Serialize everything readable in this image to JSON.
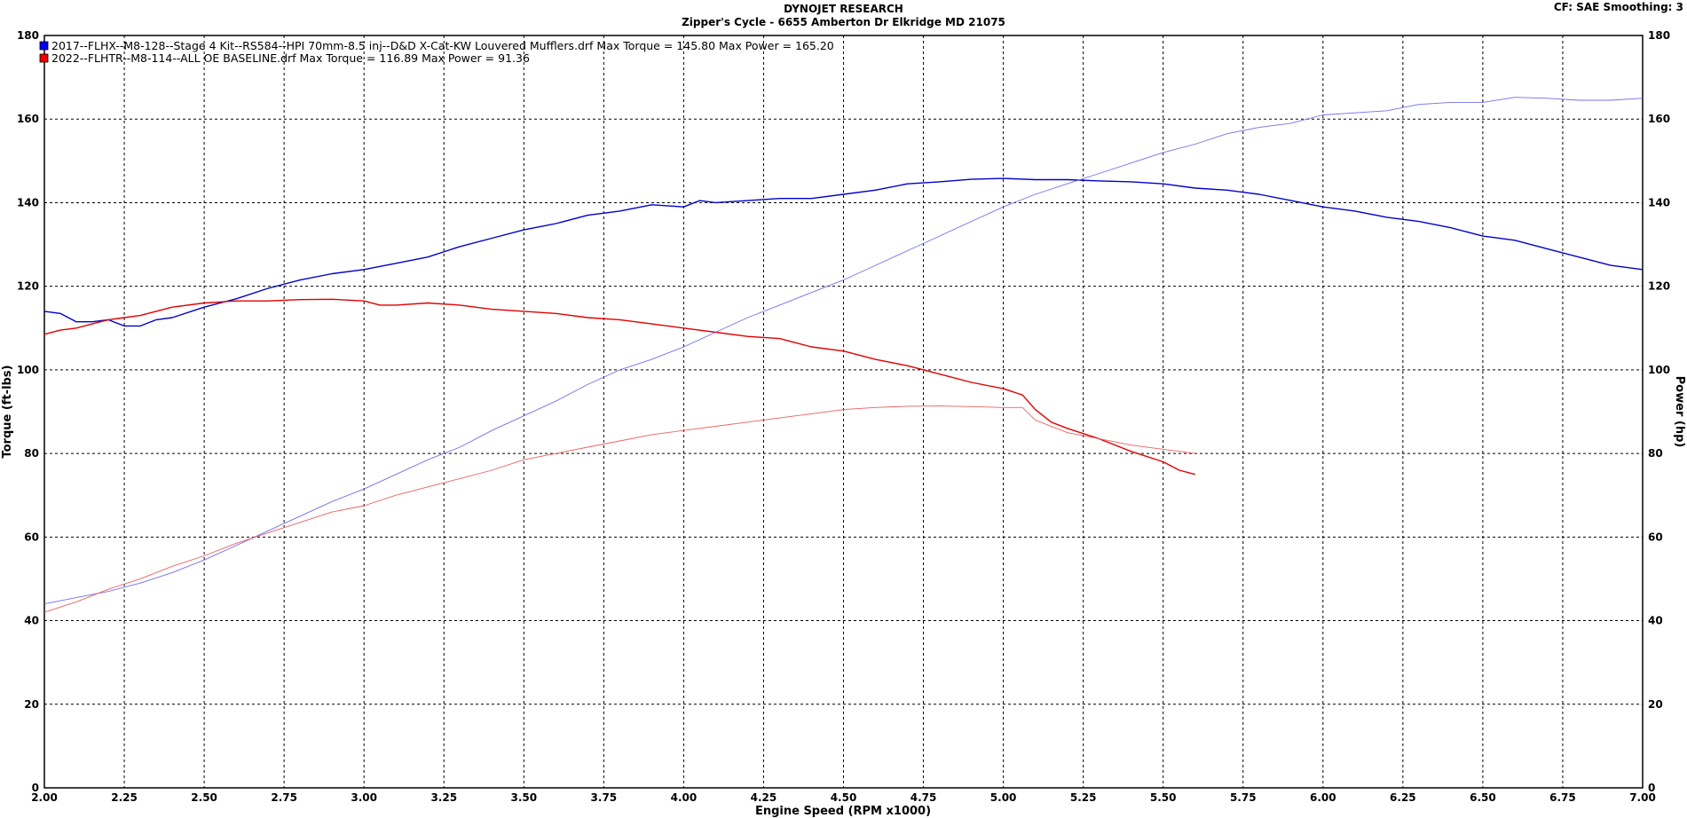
{
  "header": {
    "title": "DYNOJET RESEARCH",
    "subtitle": "Zipper's Cycle - 6655 Amberton Dr Elkridge MD 21075",
    "cf_info": "CF: SAE  Smoothing: 3"
  },
  "chart_data": {
    "type": "line",
    "xlabel": "Engine Speed (RPM x1000)",
    "ylabel_left": "Torque (ft-lbs)",
    "ylabel_right": "Power (hp)",
    "xlim": [
      2.0,
      7.0
    ],
    "ylim": [
      0,
      180
    ],
    "x_ticks": [
      "2.00",
      "2.25",
      "2.50",
      "2.75",
      "3.00",
      "3.25",
      "3.50",
      "3.75",
      "4.00",
      "4.25",
      "4.50",
      "4.75",
      "5.00",
      "5.25",
      "5.50",
      "5.75",
      "6.00",
      "6.25",
      "6.50",
      "6.75",
      "7.00"
    ],
    "y_ticks": [
      "0",
      "20",
      "40",
      "60",
      "80",
      "100",
      "120",
      "140",
      "160",
      "180"
    ],
    "grid": true,
    "legend": [
      {
        "text": "2017--FLHX--M8-128--Stage 4 Kit--RS584--HPI 70mm-8.5 inj--D&D X-Cat-KW Louvered Mufflers.drf Max Torque = 145.80     Max Power = 165.20",
        "color": "#0000ee"
      },
      {
        "text": "2022--FLHTR--M8-114--ALL OE BASELINE.drf Max Torque = 116.89     Max Power = 91.36",
        "color": "#ee0000"
      }
    ],
    "series": [
      {
        "color": "#0000cc",
        "width": 1.4,
        "x": [
          2.0,
          2.05,
          2.1,
          2.15,
          2.2,
          2.25,
          2.3,
          2.35,
          2.4,
          2.5,
          2.6,
          2.7,
          2.8,
          2.9,
          3.0,
          3.1,
          3.2,
          3.3,
          3.4,
          3.5,
          3.6,
          3.7,
          3.8,
          3.9,
          4.0,
          4.05,
          4.1,
          4.2,
          4.3,
          4.4,
          4.5,
          4.6,
          4.7,
          4.8,
          4.9,
          5.0,
          5.1,
          5.2,
          5.3,
          5.4,
          5.5,
          5.6,
          5.7,
          5.8,
          5.9,
          6.0,
          6.1,
          6.2,
          6.3,
          6.4,
          6.5,
          6.6,
          6.7,
          6.8,
          6.9,
          7.0
        ],
        "y": [
          114,
          113.5,
          111.5,
          111.5,
          112,
          110.5,
          110.5,
          112,
          112.5,
          115,
          117,
          119.5,
          121.5,
          123,
          124,
          125.5,
          127,
          129.5,
          131.5,
          133.5,
          135,
          137,
          138,
          139.5,
          139,
          140.5,
          140,
          140.5,
          141,
          141,
          142,
          143,
          144.5,
          145,
          145.6,
          145.8,
          145.5,
          145.5,
          145.2,
          145,
          144.5,
          143.5,
          143,
          142,
          140.5,
          139,
          138,
          136.5,
          135.5,
          134,
          132,
          131,
          129,
          127,
          125,
          124
        ]
      },
      {
        "color": "#e00000",
        "width": 1.4,
        "x": [
          2.0,
          2.05,
          2.1,
          2.15,
          2.2,
          2.25,
          2.3,
          2.4,
          2.5,
          2.6,
          2.7,
          2.8,
          2.9,
          3.0,
          3.05,
          3.1,
          3.2,
          3.3,
          3.4,
          3.5,
          3.6,
          3.7,
          3.8,
          3.9,
          4.0,
          4.1,
          4.2,
          4.3,
          4.4,
          4.5,
          4.6,
          4.7,
          4.8,
          4.9,
          5.0,
          5.06,
          5.1,
          5.15,
          5.2,
          5.3,
          5.4,
          5.5,
          5.55,
          5.6
        ],
        "y": [
          108.5,
          109.5,
          110,
          111,
          112,
          112.5,
          113,
          115,
          116,
          116.5,
          116.5,
          116.8,
          116.9,
          116.5,
          115.5,
          115.5,
          116,
          115.5,
          114.5,
          114,
          113.5,
          112.5,
          112,
          111,
          110,
          109,
          108,
          107.5,
          105.5,
          104.5,
          102.5,
          101,
          99,
          97,
          95.5,
          94,
          90.5,
          87.5,
          86,
          83.5,
          80.5,
          78,
          76,
          75
        ]
      },
      {
        "color": "#7070ee",
        "width": 0.9,
        "x": [
          2.0,
          2.1,
          2.2,
          2.3,
          2.4,
          2.5,
          2.6,
          2.7,
          2.8,
          2.9,
          3.0,
          3.1,
          3.2,
          3.3,
          3.4,
          3.5,
          3.6,
          3.7,
          3.8,
          3.9,
          4.0,
          4.1,
          4.2,
          4.3,
          4.4,
          4.5,
          4.6,
          4.7,
          4.8,
          4.9,
          5.0,
          5.1,
          5.2,
          5.3,
          5.4,
          5.5,
          5.6,
          5.7,
          5.8,
          5.9,
          6.0,
          6.1,
          6.2,
          6.3,
          6.4,
          6.5,
          6.6,
          6.7,
          6.8,
          6.9,
          7.0
        ],
        "y": [
          44,
          45.5,
          47,
          49,
          51.5,
          54.5,
          58,
          61.5,
          65,
          68.5,
          71.5,
          75,
          78.5,
          81.5,
          85.5,
          89,
          92.5,
          96.5,
          100,
          102.5,
          105.5,
          109,
          112.5,
          115.5,
          118.5,
          121.5,
          125,
          128.5,
          132,
          135.5,
          139,
          142,
          144.5,
          147,
          149.5,
          152,
          154,
          156.5,
          158,
          159,
          161,
          161.5,
          162,
          163.5,
          164,
          164,
          165.2,
          165,
          164.5,
          164.5,
          165
        ]
      },
      {
        "color": "#ee6060",
        "width": 0.9,
        "x": [
          2.0,
          2.1,
          2.2,
          2.3,
          2.4,
          2.5,
          2.6,
          2.7,
          2.8,
          2.9,
          3.0,
          3.1,
          3.2,
          3.3,
          3.4,
          3.5,
          3.6,
          3.7,
          3.8,
          3.9,
          4.0,
          4.1,
          4.2,
          4.3,
          4.4,
          4.5,
          4.6,
          4.7,
          4.8,
          4.9,
          5.0,
          5.06,
          5.1,
          5.2,
          5.3,
          5.4,
          5.5,
          5.6
        ],
        "y": [
          42,
          44.5,
          47.5,
          50,
          53,
          55.5,
          58.5,
          61,
          63.5,
          66,
          67.5,
          70,
          72,
          74,
          76,
          78.5,
          80,
          81.5,
          83,
          84.5,
          85.5,
          86.5,
          87.5,
          88.5,
          89.5,
          90.5,
          91,
          91.3,
          91.36,
          91.2,
          91,
          91,
          88,
          85,
          83.5,
          82,
          81,
          80
        ]
      }
    ]
  }
}
